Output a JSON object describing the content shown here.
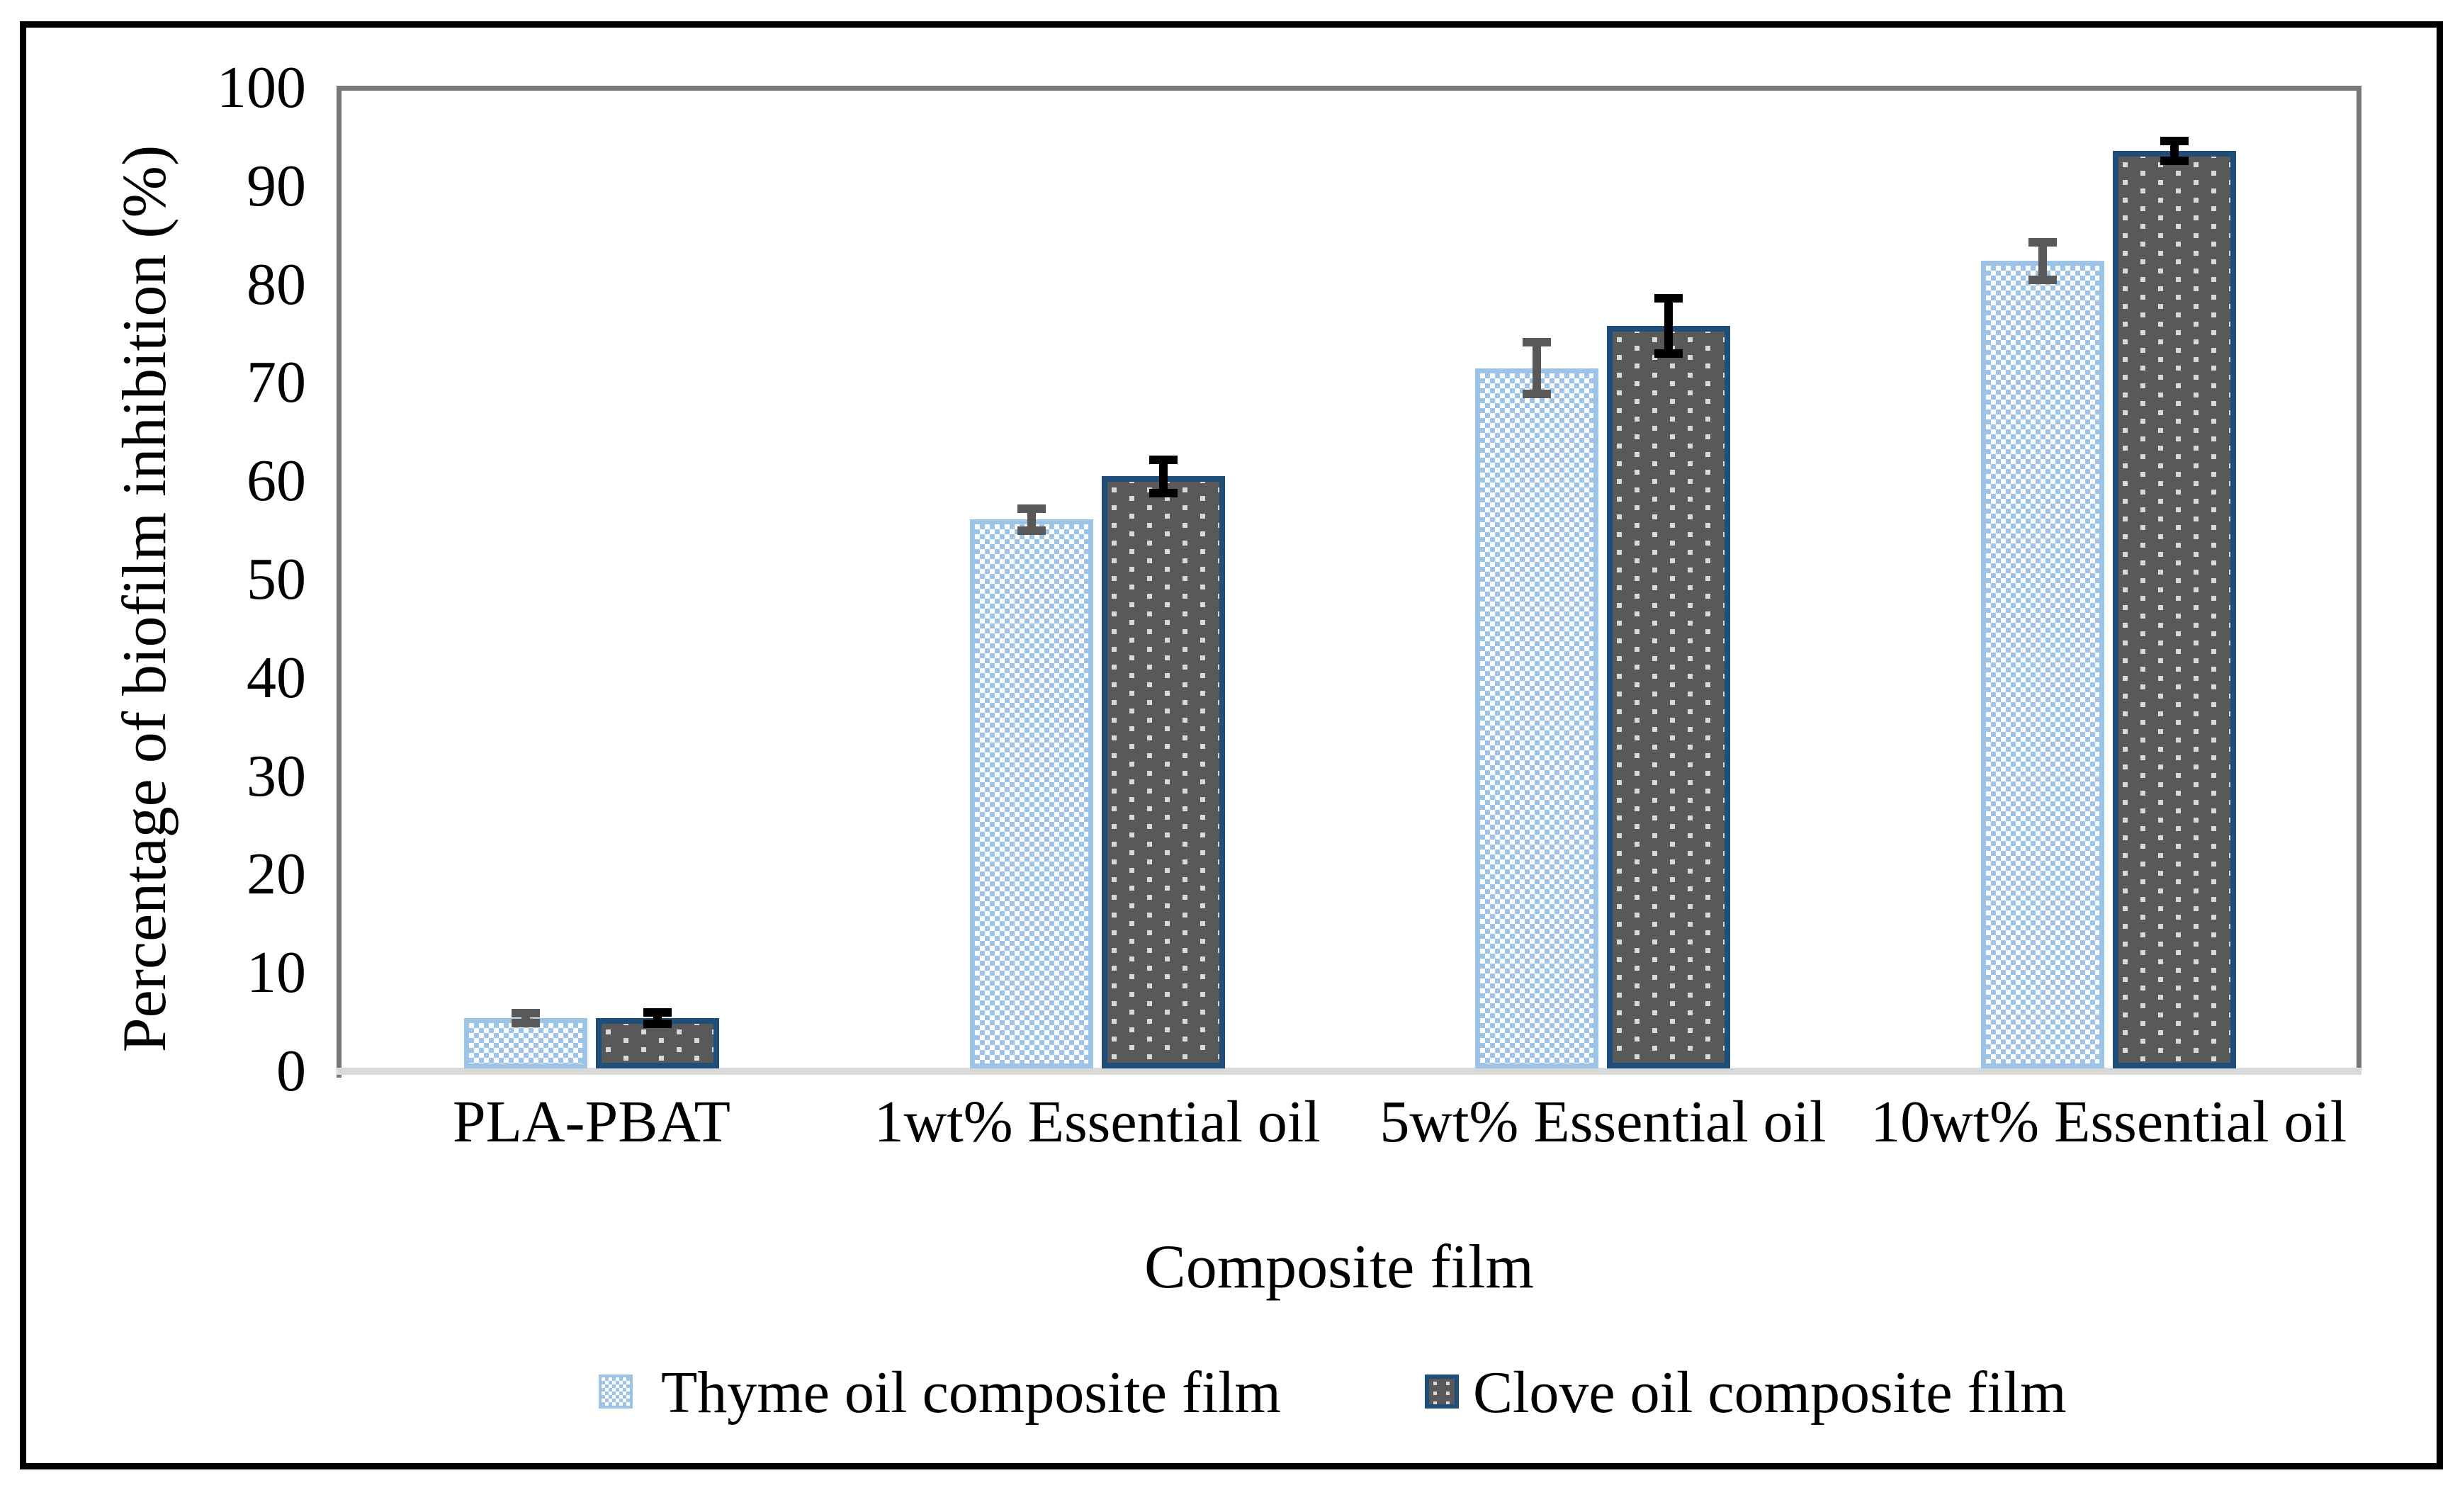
{
  "figure_title": "",
  "chart_data": {
    "type": "bar",
    "categories": [
      "PLA-PBAT",
      "1wt% Essential oil",
      "5wt% Essential oil",
      "10wt% Essential oil"
    ],
    "series": [
      {
        "name": "Thyme oil composite film",
        "values": [
          5.4,
          56.1,
          71.5,
          82.4
        ],
        "errors": [
          0.5,
          1.1,
          2.6,
          1.9
        ],
        "pattern": "light-blue-checkerboard",
        "border_color": "#9dc3e6",
        "fill_color": "#ffffff",
        "pattern_color": "#9dc3e6",
        "error_bar_color": "#595959"
      },
      {
        "name": "Clove oil composite film",
        "values": [
          5.4,
          60.5,
          75.8,
          93.6
        ],
        "errors": [
          0.6,
          1.7,
          2.8,
          1.0
        ],
        "pattern": "white-dots-on-dark-gray",
        "border_color": "#1f4e79",
        "fill_color": "#595959",
        "pattern_color": "#d9d9d9",
        "error_bar_color": "#000000"
      }
    ],
    "xlabel": "Composite film",
    "ylabel": "Percentage of biofilm inhibition (%)",
    "ylim": [
      0,
      100
    ],
    "yticks": [
      0,
      10,
      20,
      30,
      40,
      50,
      60,
      70,
      80,
      90,
      100
    ],
    "grid": false,
    "legend_position": "bottom",
    "error_bars": true
  },
  "colors": {
    "axis_line": "#787878",
    "baseline": "#d9d9d9",
    "frame": "#000000",
    "text": "#000000"
  }
}
